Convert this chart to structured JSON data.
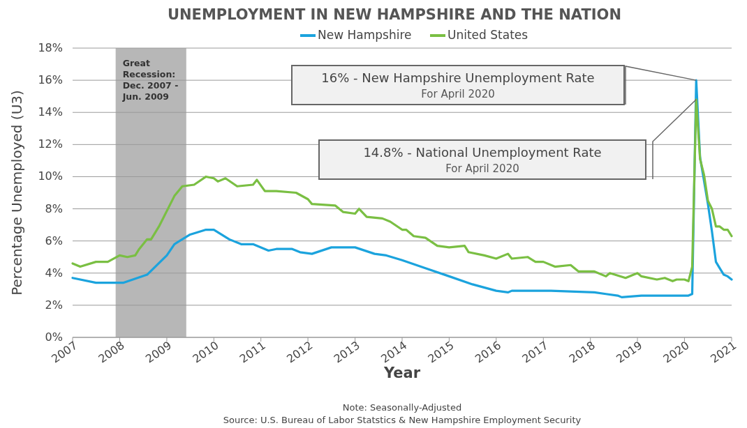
{
  "chart_data": {
    "type": "line",
    "title": "UNEMPLOYMENT IN NEW HAMPSHIRE AND THE NATION",
    "xlabel": "Year",
    "ylabel": "Percentage Unemployed (U3)",
    "xlim": [
      "2007-01",
      "2021-01"
    ],
    "xticks": [
      {
        "value": "2007-01",
        "label": "2007"
      },
      {
        "value": "2008-01",
        "label": "2008"
      },
      {
        "value": "2009-01",
        "label": "2009"
      },
      {
        "value": "2010-01",
        "label": "2010"
      },
      {
        "value": "2011-01",
        "label": "2011"
      },
      {
        "value": "2012-01",
        "label": "2012"
      },
      {
        "value": "2013-01",
        "label": "2013"
      },
      {
        "value": "2014-01",
        "label": "2014"
      },
      {
        "value": "2015-01",
        "label": "2015"
      },
      {
        "value": "2016-01",
        "label": "2016"
      },
      {
        "value": "2017-01",
        "label": "2017"
      },
      {
        "value": "2018-01",
        "label": "2018"
      },
      {
        "value": "2019-01",
        "label": "2019"
      },
      {
        "value": "2020-01",
        "label": "2020"
      },
      {
        "value": "2021-01",
        "label": "2021"
      }
    ],
    "ylim": [
      0,
      18
    ],
    "yticks": [
      {
        "value": 0,
        "label": "0%"
      },
      {
        "value": 2,
        "label": "2%"
      },
      {
        "value": 4,
        "label": "4%"
      },
      {
        "value": 6,
        "label": "6%"
      },
      {
        "value": 8,
        "label": "8%"
      },
      {
        "value": 10,
        "label": "10%"
      },
      {
        "value": 12,
        "label": "12%"
      },
      {
        "value": 14,
        "label": "14%"
      },
      {
        "value": 16,
        "label": "16%"
      },
      {
        "value": 18,
        "label": "18%"
      }
    ],
    "grid": "y",
    "legend": "top",
    "line_style": "solid",
    "marker": "none",
    "series": [
      {
        "name": "New Hampshire",
        "color": "#1ba3dd",
        "x": [
          "2007-01",
          "2007-07",
          "2008-02",
          "2008-08",
          "2009-01",
          "2009-03",
          "2009-07",
          "2009-11",
          "2010-01",
          "2010-05",
          "2010-08",
          "2010-11",
          "2011-03",
          "2011-05",
          "2011-09",
          "2011-11",
          "2012-02",
          "2012-07",
          "2013-01",
          "2013-06",
          "2013-09",
          "2014-01",
          "2014-07",
          "2015-01",
          "2015-07",
          "2016-01",
          "2016-04",
          "2016-05",
          "2017-03",
          "2018-02",
          "2018-05",
          "2018-08",
          "2018-09",
          "2019-02",
          "2020-02",
          "2020-03",
          "2020-04",
          "2020-05",
          "2020-07",
          "2020-08",
          "2020-09",
          "2020-10",
          "2020-11",
          "2020-12",
          "2021-01"
        ],
        "values": [
          3.7,
          3.4,
          3.4,
          3.9,
          5.1,
          5.8,
          6.4,
          6.7,
          6.7,
          6.1,
          5.8,
          5.8,
          5.4,
          5.5,
          5.5,
          5.3,
          5.2,
          5.6,
          5.6,
          5.2,
          5.1,
          4.8,
          4.3,
          3.8,
          3.3,
          2.9,
          2.8,
          2.9,
          2.9,
          2.8,
          2.7,
          2.6,
          2.5,
          2.6,
          2.6,
          2.7,
          16.0,
          11.2,
          8.3,
          6.6,
          4.7,
          4.3,
          3.9,
          3.8,
          3.6
        ]
      },
      {
        "name": "United States",
        "color": "#7abf43",
        "x": [
          "2007-01",
          "2007-03",
          "2007-07",
          "2007-10",
          "2008-01",
          "2008-03",
          "2008-05",
          "2008-06",
          "2008-08",
          "2008-09",
          "2008-11",
          "2009-03",
          "2009-05",
          "2009-08",
          "2009-11",
          "2010-01",
          "2010-02",
          "2010-04",
          "2010-07",
          "2010-11",
          "2010-12",
          "2011-02",
          "2011-05",
          "2011-10",
          "2012-01",
          "2012-02",
          "2012-08",
          "2012-10",
          "2013-01",
          "2013-02",
          "2013-04",
          "2013-08",
          "2013-10",
          "2014-01",
          "2014-02",
          "2014-04",
          "2014-07",
          "2014-10",
          "2015-01",
          "2015-05",
          "2015-06",
          "2015-10",
          "2016-01",
          "2016-04",
          "2016-05",
          "2016-09",
          "2016-11",
          "2017-01",
          "2017-04",
          "2017-08",
          "2017-10",
          "2018-02",
          "2018-05",
          "2018-06",
          "2018-10",
          "2019-01",
          "2019-02",
          "2019-06",
          "2019-08",
          "2019-10",
          "2019-11",
          "2020-01",
          "2020-02",
          "2020-03",
          "2020-04",
          "2020-05",
          "2020-06",
          "2020-07",
          "2020-08",
          "2020-09",
          "2020-10",
          "2020-11",
          "2020-12",
          "2021-01"
        ],
        "values": [
          4.6,
          4.4,
          4.7,
          4.7,
          5.1,
          5.0,
          5.1,
          5.5,
          6.1,
          6.1,
          6.9,
          8.8,
          9.4,
          9.5,
          10.0,
          9.9,
          9.7,
          9.9,
          9.4,
          9.5,
          9.8,
          9.1,
          9.1,
          9.0,
          8.6,
          8.3,
          8.2,
          7.8,
          7.7,
          8.0,
          7.5,
          7.4,
          7.2,
          6.7,
          6.7,
          6.3,
          6.2,
          5.7,
          5.6,
          5.7,
          5.3,
          5.1,
          4.9,
          5.2,
          4.9,
          5.0,
          4.7,
          4.7,
          4.4,
          4.5,
          4.1,
          4.1,
          3.8,
          4.0,
          3.7,
          4.0,
          3.8,
          3.6,
          3.7,
          3.5,
          3.6,
          3.6,
          3.5,
          4.4,
          14.8,
          11.1,
          10.1,
          8.5,
          8.0,
          6.9,
          6.9,
          6.7,
          6.7,
          6.3
        ]
      }
    ],
    "bands": [
      {
        "axis": "x",
        "from": "2007-12",
        "to": "2009-06",
        "label": "Great Recession: Dec. 2007 - Jun. 2009",
        "color": "#b7b7b7"
      }
    ],
    "annotations": [
      "16% - New Hampshire Unemployment Rate\nFor April 2020",
      "14.8% - National Unemployment Rate\nFor April 2020",
      "Note: Seasonally-Adjusted",
      "Source: U.S. Bureau of Labor Statstics & New Hampshire Employment Security"
    ]
  }
}
